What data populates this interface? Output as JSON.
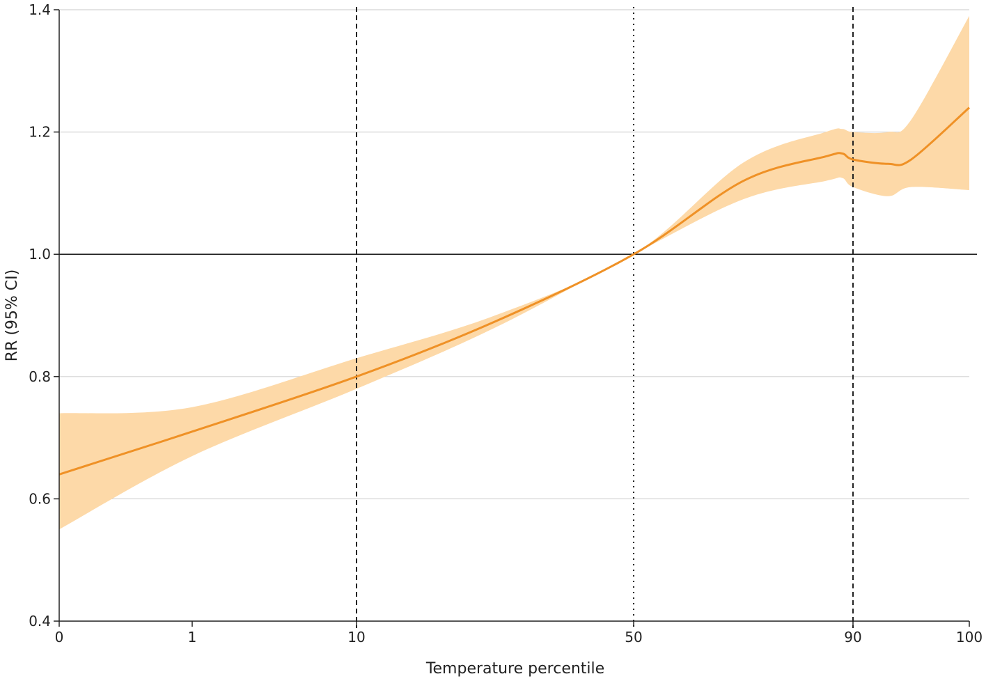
{
  "chart_data": {
    "type": "line",
    "title": "",
    "xlabel": "Temperature percentile",
    "ylabel": "RR (95% CI)",
    "ylim": [
      0.4,
      1.4
    ],
    "yticks": [
      "0.4",
      "0.6",
      "0.8",
      "1.0",
      "1.2",
      "1.4"
    ],
    "xticks": [
      "0",
      "1",
      "10",
      "50",
      "90",
      "100"
    ],
    "grid": true,
    "reference_line_y": 1.0,
    "colors": {
      "line": "#ef9126",
      "band": "#fdd9a8",
      "grid": "#d4d4d4",
      "axis": "#222222"
    },
    "vertical_lines": [
      {
        "x": "10",
        "style": "dashed"
      },
      {
        "x": "50",
        "style": "dotted"
      },
      {
        "x": "90",
        "style": "dashed"
      }
    ],
    "series": [
      {
        "x": [
          "0",
          "1",
          "10",
          "30",
          "50",
          "70",
          "85",
          "88",
          "90",
          "93",
          "95",
          "100"
        ],
        "y": [
          0.64,
          0.71,
          0.8,
          0.89,
          1.0,
          1.12,
          1.16,
          1.165,
          1.155,
          1.148,
          1.155,
          1.24
        ],
        "lower": [
          0.55,
          0.67,
          0.78,
          0.88,
          1.0,
          1.09,
          1.12,
          1.125,
          1.11,
          1.095,
          1.11,
          1.105
        ],
        "upper": [
          0.74,
          0.75,
          0.83,
          0.9,
          1.0,
          1.15,
          1.2,
          1.205,
          1.2,
          1.2,
          1.22,
          1.39
        ]
      }
    ]
  }
}
